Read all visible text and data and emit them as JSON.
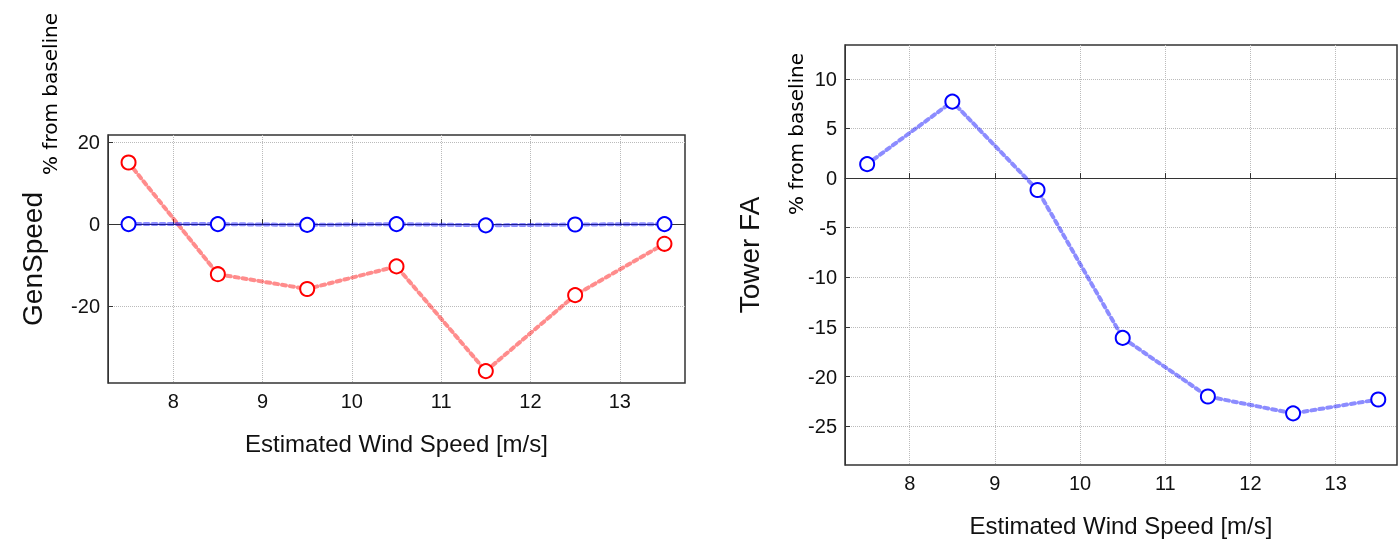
{
  "chart_data": [
    {
      "type": "line",
      "xlabel": "Estimated Wind Speed [m/s]",
      "ylabel": "GenSpeed",
      "annotations": [
        "% from baseline"
      ],
      "x": [
        7.5,
        8.5,
        9.5,
        10.5,
        11.5,
        12.5,
        13.5
      ],
      "series": [
        {
          "color": "#ff0000",
          "values": [
            15.0,
            -12.2,
            -15.8,
            -10.3,
            -35.8,
            -17.3,
            -4.8
          ]
        },
        {
          "color": "#0000ff",
          "values": [
            0,
            0,
            -0.2,
            0,
            -0.3,
            -0.1,
            0
          ]
        }
      ],
      "xlim": [
        7.27,
        13.73
      ],
      "xticks": [
        8,
        9,
        10,
        11,
        12,
        13
      ],
      "ylim": [
        -38.7,
        21.7
      ],
      "yticks": [
        -20,
        0,
        20
      ],
      "grid": true,
      "marker": "circle",
      "line_style": "dotted"
    },
    {
      "type": "line",
      "xlabel": "Estimated Wind Speed [m/s]",
      "ylabel": "Tower FA",
      "annotations": [
        "% from baseline"
      ],
      "x": [
        7.5,
        8.5,
        9.5,
        10.5,
        11.5,
        12.5,
        13.5
      ],
      "series": [
        {
          "color": "#0000ff",
          "values": [
            1.4,
            7.7,
            -1.2,
            -16.1,
            -22.0,
            -23.7,
            -22.3
          ]
        }
      ],
      "xlim": [
        7.24,
        13.72
      ],
      "xticks": [
        8,
        9,
        10,
        11,
        12,
        13
      ],
      "ylim": [
        -28.9,
        13.4
      ],
      "yticks": [
        -25,
        -20,
        -15,
        -10,
        -5,
        0,
        5,
        10
      ],
      "grid": true,
      "marker": "circle",
      "line_style": "dotted"
    }
  ]
}
